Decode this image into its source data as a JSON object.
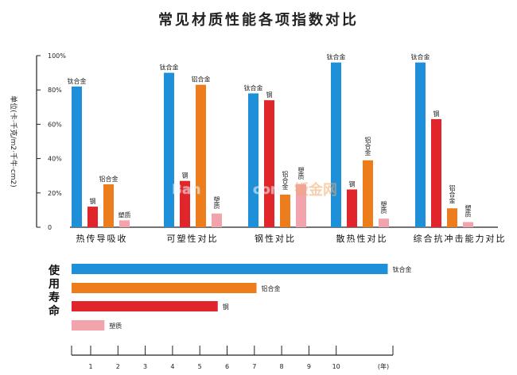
{
  "colors": {
    "titanium": "#1e90d9",
    "steel": "#e0262a",
    "aluminum": "#ec7c1c",
    "plastic": "#f2a3ab",
    "axis": "#222222",
    "watermark": "#f0a96a"
  },
  "chart_data": [
    {
      "type": "bar",
      "title": "常见材质性能各项指数对比",
      "ylabel": "单位(卡·千克/m2·千牛·cm2)",
      "ylim": [
        0,
        100
      ],
      "yticks": [
        "0",
        "20%",
        "40%",
        "60%",
        "80%",
        "100%"
      ],
      "categories": [
        "热传导吸收",
        "可塑性对比",
        "钢性对比",
        "散热性对比",
        "综合抗冲击能力对比"
      ],
      "series": [
        {
          "name": "钛合金",
          "values": [
            82,
            90,
            78,
            96,
            96
          ]
        },
        {
          "name": "钢",
          "values": [
            12,
            27,
            74,
            22,
            63
          ]
        },
        {
          "name": "铝合金",
          "values": [
            25,
            83,
            19,
            39,
            11
          ]
        },
        {
          "name": "塑质",
          "values": [
            4,
            8,
            25,
            5,
            3
          ]
        }
      ],
      "bar_labels": [
        [
          "钛合金",
          "钢",
          "铝合金",
          "塑质"
        ],
        [
          "钛合金",
          "钢",
          "铝合金",
          "塑质"
        ],
        [
          "钛合金",
          "钢",
          "铝合金",
          "塑质"
        ],
        [
          "钛合金",
          "钢",
          "铝合金",
          "塑质"
        ],
        [
          "钛合金",
          "钢",
          "铝合金",
          "塑质"
        ]
      ],
      "grid": false,
      "legend": "none"
    },
    {
      "type": "bar",
      "orientation": "horizontal",
      "ylabel": "使用寿命",
      "xlabel": "年",
      "xlim": [
        0,
        11
      ],
      "xticks": [
        "1",
        "2",
        "3",
        "4",
        "5",
        "6",
        "7",
        "8",
        "9",
        "10"
      ],
      "xunit": "(年)",
      "categories": [
        "钛合金",
        "铝合金",
        "钢",
        "塑质"
      ],
      "values": [
        10.6,
        6.2,
        4.9,
        1.1
      ],
      "grid": false,
      "legend": "none"
    }
  ],
  "watermark": {
    "left": "Ban",
    "mid": "com",
    "right": "钣金网"
  }
}
